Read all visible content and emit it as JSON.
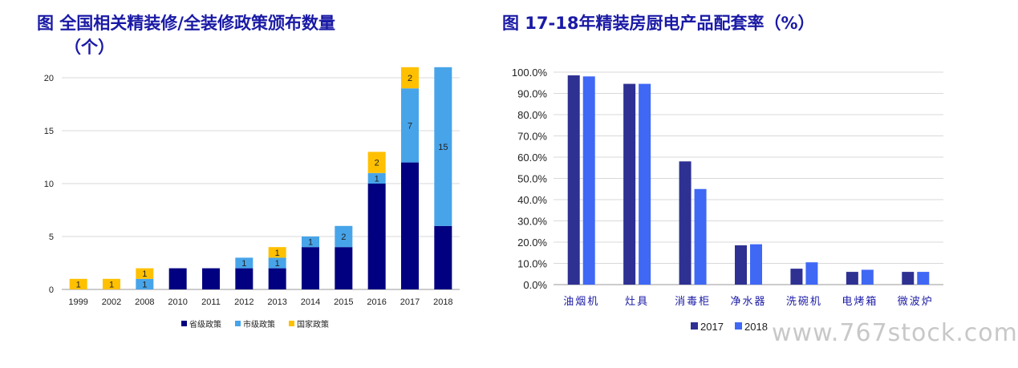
{
  "left_title_line1": "图 全国相关精装修/全装修政策颁布数量",
  "left_title_line2": "（个）",
  "right_title": "图 17-18年精装房厨电产品配套率（%）",
  "watermark": "www.767stock.com",
  "colors": {
    "provincial": "#000080",
    "city": "#47a4e9",
    "national": "#ffc000",
    "y2017": "#2e3192",
    "y2018": "#3f68f5",
    "title": "#1a1aa6"
  },
  "chart_data": [
    {
      "type": "bar",
      "stacked": true,
      "categories": [
        "1999",
        "2002",
        "2008",
        "2010",
        "2011",
        "2012",
        "2013",
        "2014",
        "2015",
        "2016",
        "2017",
        "2018"
      ],
      "series": [
        {
          "name": "省级政策",
          "values": [
            0,
            0,
            0,
            2,
            2,
            2,
            2,
            4,
            4,
            10,
            12,
            6
          ]
        },
        {
          "name": "市级政策",
          "values": [
            0,
            0,
            1,
            0,
            0,
            1,
            1,
            1,
            2,
            1,
            7,
            15
          ]
        },
        {
          "name": "国家政策",
          "values": [
            1,
            1,
            1,
            0,
            0,
            0,
            1,
            0,
            0,
            2,
            2,
            0
          ]
        }
      ],
      "data_labels": {
        "市级政策": [
          null,
          null,
          "1",
          null,
          null,
          "1",
          "1",
          "1",
          "2",
          "1",
          "7",
          "15"
        ],
        "国家政策": [
          "1",
          "1",
          "1",
          null,
          null,
          null,
          "1",
          null,
          null,
          "2",
          "2",
          null
        ]
      },
      "yticks": [
        "0",
        "5",
        "10",
        "15",
        "20"
      ],
      "ylim": [
        0,
        20
      ],
      "legend_position": "bottom",
      "grid": true
    },
    {
      "type": "bar",
      "categories": [
        "油烟机",
        "灶具",
        "消毒柜",
        "净水器",
        "洗碗机",
        "电烤箱",
        "微波炉"
      ],
      "series": [
        {
          "name": "2017",
          "values": [
            98.5,
            94.5,
            58.0,
            18.5,
            7.5,
            6.0,
            6.0
          ]
        },
        {
          "name": "2018",
          "values": [
            98.0,
            94.5,
            45.0,
            19.0,
            10.5,
            7.0,
            6.0
          ]
        }
      ],
      "yticks": [
        "0.0%",
        "10.0%",
        "20.0%",
        "30.0%",
        "40.0%",
        "50.0%",
        "60.0%",
        "70.0%",
        "80.0%",
        "90.0%",
        "100.0%"
      ],
      "ylim": [
        0,
        100
      ],
      "legend_position": "bottom",
      "grid": true
    }
  ]
}
